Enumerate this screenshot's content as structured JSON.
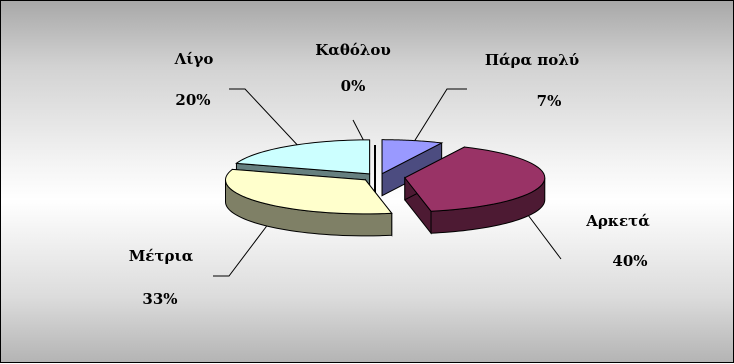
{
  "chart_data": {
    "type": "pie",
    "style": "3d-exploded",
    "slices": [
      {
        "label": "Καθόλου",
        "value": 0,
        "pct_label": "0%"
      },
      {
        "label": "Πάρα πολύ",
        "value": 7,
        "pct_label": "7%"
      },
      {
        "label": "Αρκετά",
        "value": 40,
        "pct_label": "40%"
      },
      {
        "label": "Μέτρια",
        "value": 33,
        "pct_label": "33%"
      },
      {
        "label": "Λίγο",
        "value": 20,
        "pct_label": "20%"
      }
    ],
    "colors": {
      "Καθόλου": {
        "top": "#6a6a8a",
        "side": "#3a3a5a"
      },
      "Πάρα πολύ": {
        "top": "#9999ff",
        "side": "#4c4c80"
      },
      "Αρκετά": {
        "top": "#993366",
        "side": "#4d1a33"
      },
      "Μέτρια": {
        "top": "#ffffcc",
        "side": "#7f8066"
      },
      "Λίγο": {
        "top": "#ccffff",
        "side": "#668080"
      }
    },
    "legend": "none",
    "background": "gradient-gray"
  }
}
